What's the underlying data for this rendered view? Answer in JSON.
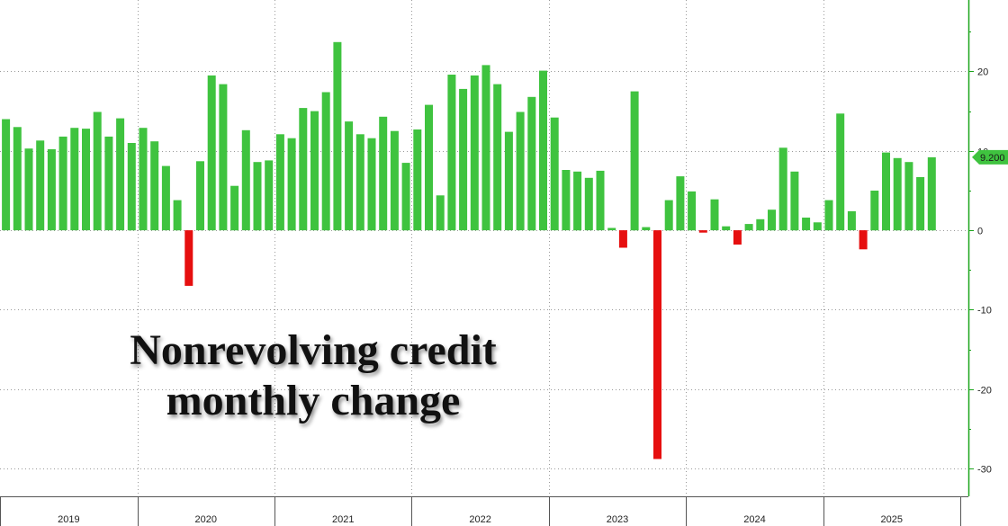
{
  "title_lines": [
    "Nonrevolving credit",
    "monthly change"
  ],
  "colors": {
    "positive": "#3fc33f",
    "negative": "#e60f0f",
    "axis": "#1aa51a",
    "last_label_bg": "#3fc33f"
  },
  "chart_data": {
    "type": "bar",
    "title": "Nonrevolving credit monthly change",
    "years": [
      "2019",
      "2020",
      "2021",
      "2022",
      "2023",
      "2024",
      "2025"
    ],
    "y_ticks": [
      -30,
      -20,
      -10,
      0,
      10,
      20
    ],
    "ylim": [
      -33.5,
      29
    ],
    "grid": true,
    "last_value_label": "9.200",
    "series": [
      {
        "values": [
          14.0,
          13.0,
          10.3,
          11.3,
          10.2,
          11.8,
          12.9,
          12.8,
          14.9,
          11.8,
          14.1,
          11.0,
          12.9,
          11.2,
          8.1,
          3.8,
          -7.0,
          8.7,
          19.5,
          18.4,
          5.6,
          12.6,
          8.6,
          8.8,
          12.1,
          11.6,
          15.4,
          15.0,
          17.4,
          23.7,
          13.7,
          12.1,
          11.6,
          14.3,
          12.5,
          8.5,
          12.7,
          15.8,
          4.4,
          19.6,
          17.8,
          19.5,
          20.8,
          18.4,
          12.4,
          14.9,
          16.8,
          20.1,
          14.2,
          7.6,
          7.4,
          6.6,
          7.5,
          0.3,
          -2.2,
          17.5,
          0.4,
          -28.8,
          3.8,
          6.8,
          4.9,
          -0.3,
          3.9,
          0.5,
          -1.8,
          0.8,
          1.4,
          2.6,
          10.4,
          7.4,
          1.6,
          1.0,
          3.8,
          14.7,
          2.4,
          -2.4,
          5.0,
          9.8,
          9.1,
          8.6,
          6.7,
          9.2
        ]
      }
    ]
  }
}
